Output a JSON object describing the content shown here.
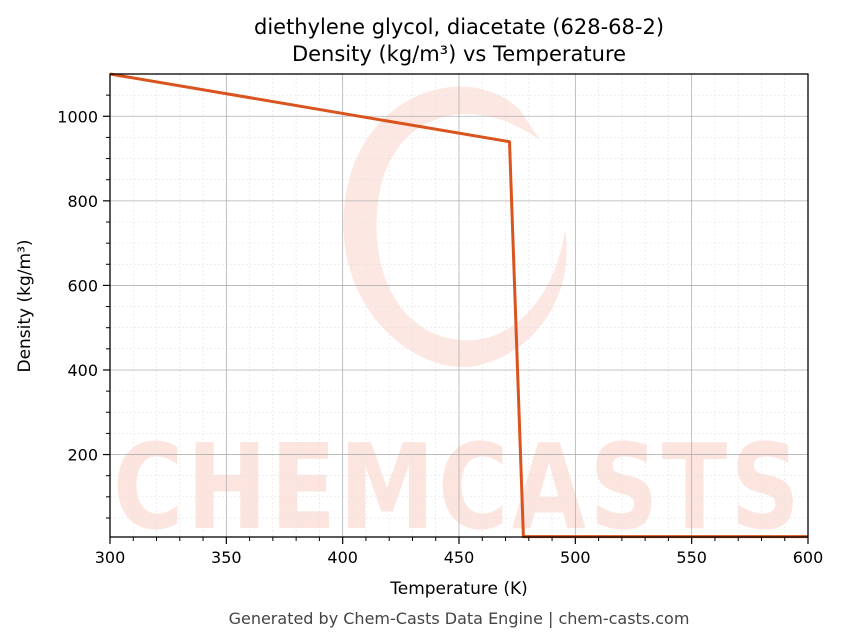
{
  "chart_data": {
    "type": "line",
    "title": [
      "diethylene glycol, diacetate (628-68-2)",
      "Density (kg/m³) vs Temperature"
    ],
    "xlabel": "Temperature (K)",
    "ylabel": "Density (kg/m³)",
    "xlim": [
      300,
      600
    ],
    "ylim": [
      5,
      1100
    ],
    "xticks": [
      300,
      350,
      400,
      450,
      500,
      550,
      600
    ],
    "yticks": [
      200,
      400,
      600,
      800,
      1000
    ],
    "grid": true,
    "series": [
      {
        "color": "#d9541e",
        "x": [
          300,
          471.7,
          477.7,
          500,
          550,
          600
        ],
        "y": [
          1100,
          940,
          6,
          6,
          6,
          6
        ]
      }
    ]
  },
  "watermark": {
    "text": "CHEMCASTS",
    "color": "#fbd3cb"
  },
  "footer": "Generated by Chem-Casts Data Engine | chem-casts.com"
}
